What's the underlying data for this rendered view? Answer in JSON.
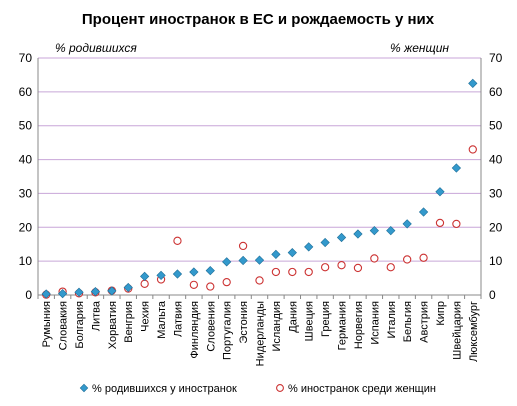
{
  "chart_data": {
    "type": "scatter",
    "title": "Процент иностранок в ЕС и рождаемость у них",
    "y_left_label": "% родившихся",
    "y_right_label": "% женщин",
    "ylim": [
      0,
      70
    ],
    "yticks": [
      0,
      10,
      20,
      30,
      40,
      50,
      60,
      70
    ],
    "grid": true,
    "legend_position": "bottom",
    "categories": [
      "Румыния",
      "Словакия",
      "Болгария",
      "Литва",
      "Хорватия",
      "Венгрия",
      "Чехия",
      "Мальта",
      "Латвия",
      "Финляндия",
      "Словения",
      "Португалия",
      "Эстония",
      "Нидерланды",
      "Исландия",
      "Дания",
      "Швеция",
      "Греция",
      "Германия",
      "Норвегия",
      "Испания",
      "Италия",
      "Бельгия",
      "Австрия",
      "Кипр",
      "Швейцария",
      "Люксембург"
    ],
    "series": [
      {
        "name": "% родившихся у иностранок",
        "marker": "diamond",
        "color": "#3399cc",
        "values": [
          0.3,
          0.4,
          0.8,
          1.0,
          1.2,
          2.2,
          5.5,
          5.8,
          6.2,
          6.8,
          7.2,
          9.8,
          10.2,
          10.3,
          12.0,
          12.5,
          14.2,
          15.5,
          17.0,
          18.0,
          19.0,
          19.0,
          21.0,
          24.5,
          30.5,
          37.5,
          62.5
        ]
      },
      {
        "name": "% иностранок среди женщин",
        "marker": "circle",
        "color": "#cc3333",
        "values": [
          0.1,
          1.0,
          0.5,
          0.8,
          1.3,
          1.9,
          3.3,
          4.6,
          16.0,
          3.0,
          2.5,
          3.8,
          14.5,
          4.3,
          6.8,
          6.8,
          6.8,
          8.2,
          8.8,
          8.0,
          10.8,
          8.2,
          10.5,
          11.0,
          21.3,
          21.0,
          43.0
        ]
      }
    ]
  }
}
